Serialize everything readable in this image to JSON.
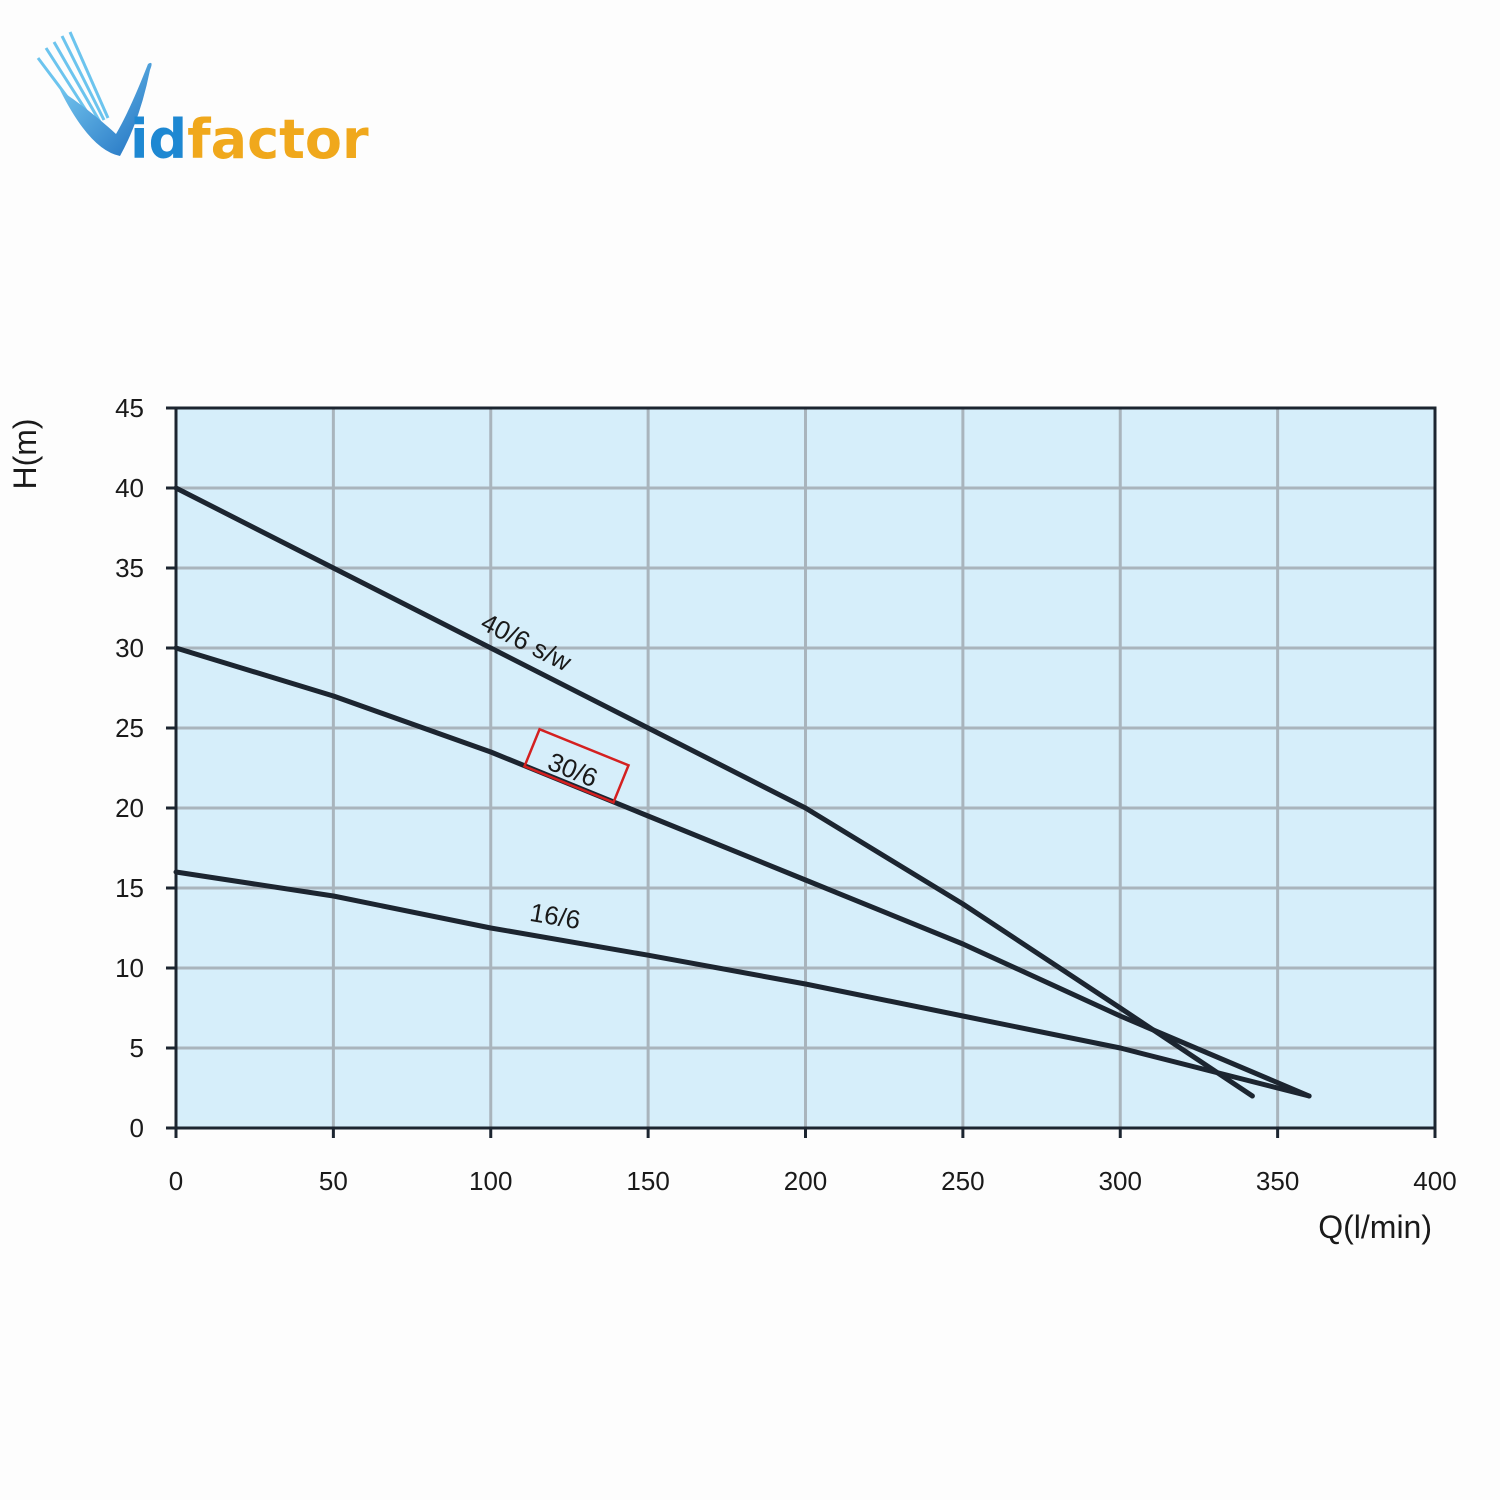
{
  "logo": {
    "text": "Vidfactor",
    "letter_v": "V",
    "part_id": "id",
    "part_factor": "factor",
    "colors": {
      "blue": "#1e88d2",
      "gold": "#f0a81c"
    }
  },
  "chart_data": {
    "type": "line",
    "title": "",
    "xlabel": "Q(l/min)",
    "ylabel": "H(m)",
    "xlim": [
      0,
      400
    ],
    "ylim": [
      0,
      45
    ],
    "xticks": [
      0,
      50,
      100,
      150,
      200,
      250,
      300,
      350,
      400
    ],
    "yticks": [
      0,
      5,
      10,
      15,
      20,
      25,
      30,
      35,
      40,
      45
    ],
    "grid": true,
    "plot_background": "#d6eefa",
    "grid_color": "#a9b4bc",
    "line_color": "#1c2530",
    "highlight_color": "#d42020",
    "series": [
      {
        "name": "40/6 s/w",
        "highlighted": false,
        "x": [
          0,
          50,
          100,
          150,
          200,
          250,
          300,
          342
        ],
        "y": [
          40,
          35,
          30,
          25,
          20,
          14,
          7.5,
          2
        ]
      },
      {
        "name": "30/6",
        "highlighted": true,
        "x": [
          0,
          50,
          100,
          150,
          200,
          250,
          300,
          360
        ],
        "y": [
          30,
          27,
          23.5,
          19.5,
          15.5,
          11.5,
          7,
          2
        ]
      },
      {
        "name": "16/6",
        "highlighted": false,
        "x": [
          0,
          50,
          100,
          150,
          200,
          250,
          300,
          360
        ],
        "y": [
          16,
          14.5,
          12.5,
          10.8,
          9,
          7,
          5,
          2
        ]
      }
    ]
  }
}
